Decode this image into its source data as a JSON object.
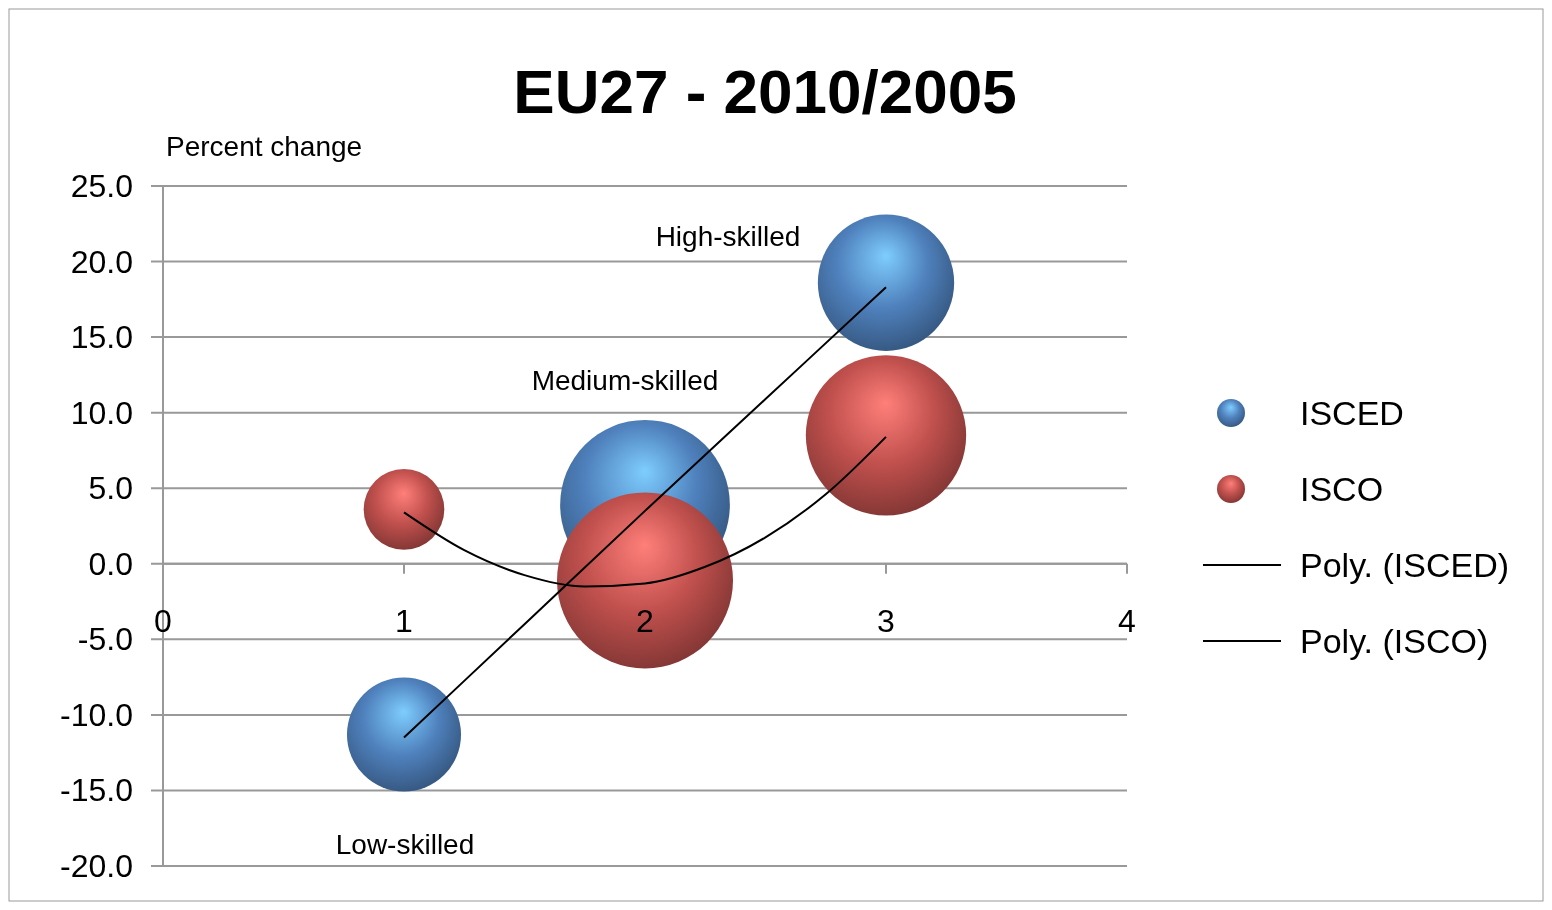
{
  "chart_data": {
    "type": "bubble",
    "title": "EU27 - 2010/2005",
    "ylabel": "Percent change",
    "x": [
      1,
      2,
      3
    ],
    "series": [
      {
        "name": "ISCED",
        "color": "#4f81bd",
        "values": [
          -11.3,
          3.9,
          18.6
        ],
        "sizes": [
          0.42,
          0.93,
          0.6
        ]
      },
      {
        "name": "ISCO",
        "color": "#c0504d",
        "values": [
          3.6,
          -1.1,
          8.5
        ],
        "sizes": [
          0.21,
          1,
          0.83
        ]
      },
      {
        "name": "Poly. (ISCED)",
        "type": "line",
        "color": "#000000",
        "x": [
          1,
          1.5,
          2,
          2.5,
          3
        ],
        "values": [
          -11.5,
          -4.0,
          3.5,
          10.9,
          18.3
        ],
        "marker": "none"
      },
      {
        "name": "Poly. (ISCO)",
        "type": "line",
        "color": "#000000",
        "x": [
          1,
          1.25,
          1.5,
          1.75,
          2,
          2.25,
          2.5,
          2.75,
          3
        ],
        "values": [
          3.4,
          0.9,
          -0.75,
          -1.5,
          -1.3,
          -0.2,
          1.75,
          4.6,
          8.4
        ],
        "marker": "none"
      }
    ],
    "xlim": [
      0,
      4
    ],
    "xticks": [
      0,
      1,
      2,
      3,
      4
    ],
    "ylim": [
      -20,
      25
    ],
    "yticks": [
      {
        "value": -20,
        "label": "-20.0"
      },
      {
        "value": -15,
        "label": "-15.0"
      },
      {
        "value": -10,
        "label": "-10.0"
      },
      {
        "value": -5,
        "label": "-5.0"
      },
      {
        "value": 0,
        "label": "0.0"
      },
      {
        "value": 5,
        "label": "5.0"
      },
      {
        "value": 10,
        "label": "10.0"
      },
      {
        "value": 15,
        "label": "15.0"
      },
      {
        "value": 20,
        "label": "20.0"
      },
      {
        "value": 25,
        "label": "25.0"
      }
    ],
    "grid": "y",
    "legend": "right",
    "annotations": [
      "High-skilled",
      "Medium-skilled",
      "Low-skilled"
    ]
  }
}
